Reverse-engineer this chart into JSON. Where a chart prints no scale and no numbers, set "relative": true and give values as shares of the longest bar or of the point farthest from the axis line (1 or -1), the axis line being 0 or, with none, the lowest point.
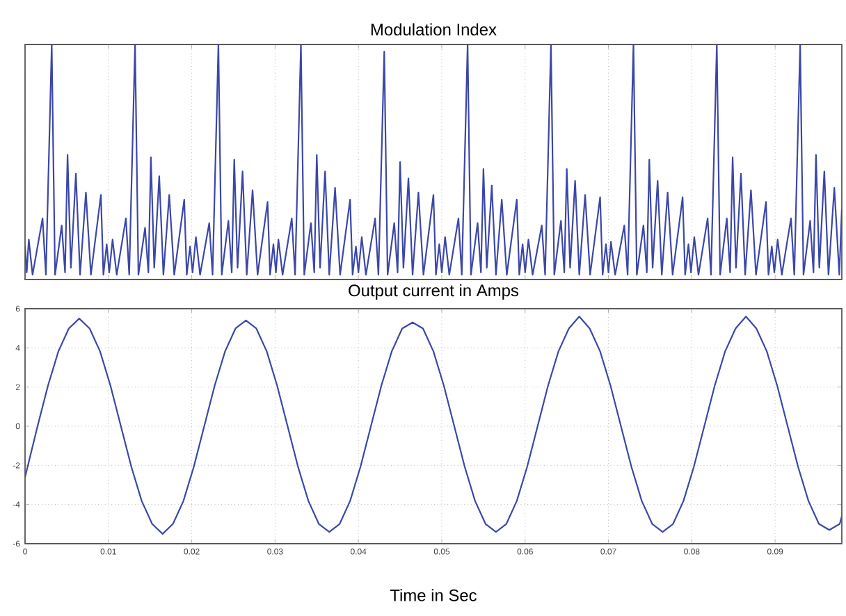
{
  "chart_data": [
    {
      "type": "line",
      "title": "Modulation Index",
      "relative": true,
      "color": "#3b47a8",
      "grid": "x",
      "tick_labels": false,
      "xlim": [
        0,
        0.098
      ],
      "xticks": [
        0,
        0.01,
        0.02,
        0.03,
        0.04,
        0.05,
        0.06,
        0.07,
        0.08,
        0.09
      ],
      "x": [
        0,
        0.0002,
        0.00045,
        0.0009,
        0.0021,
        0.0025,
        0.0032,
        0.0036,
        0.0044,
        0.0048,
        0.0051,
        0.0055,
        0.0061,
        0.0066,
        0.0073,
        0.0079,
        0.0091,
        0.0094,
        0.0098,
        0.0101,
        0.0105,
        0.011,
        0.0121,
        0.0125,
        0.0132,
        0.0136,
        0.0144,
        0.0148,
        0.0151,
        0.0155,
        0.0161,
        0.0166,
        0.0173,
        0.0179,
        0.0191,
        0.0194,
        0.0198,
        0.0201,
        0.0205,
        0.021,
        0.0221,
        0.0225,
        0.0232,
        0.0236,
        0.0244,
        0.0248,
        0.0251,
        0.0255,
        0.0261,
        0.0266,
        0.0273,
        0.0279,
        0.0291,
        0.0294,
        0.0298,
        0.0301,
        0.0304,
        0.0309,
        0.032,
        0.0324,
        0.0331,
        0.0335,
        0.0343,
        0.0347,
        0.035,
        0.0354,
        0.036,
        0.0365,
        0.0372,
        0.0378,
        0.039,
        0.0393,
        0.0397,
        0.04,
        0.0404,
        0.0409,
        0.042,
        0.0424,
        0.0431,
        0.0435,
        0.0443,
        0.0447,
        0.045,
        0.0454,
        0.046,
        0.0465,
        0.0472,
        0.0478,
        0.049,
        0.0493,
        0.0497,
        0.05,
        0.0504,
        0.0509,
        0.052,
        0.0524,
        0.0531,
        0.0535,
        0.0543,
        0.0547,
        0.055,
        0.0554,
        0.056,
        0.0565,
        0.0572,
        0.0578,
        0.059,
        0.0593,
        0.0597,
        0.06,
        0.0604,
        0.0609,
        0.062,
        0.0624,
        0.0631,
        0.0635,
        0.0643,
        0.0647,
        0.065,
        0.0654,
        0.066,
        0.0665,
        0.0672,
        0.0678,
        0.069,
        0.0693,
        0.0697,
        0.07,
        0.0703,
        0.0708,
        0.0719,
        0.0723,
        0.073,
        0.0734,
        0.0742,
        0.0746,
        0.0749,
        0.0753,
        0.0759,
        0.0764,
        0.0771,
        0.0777,
        0.0789,
        0.0792,
        0.0796,
        0.0799,
        0.0803,
        0.0808,
        0.0819,
        0.0823,
        0.083,
        0.0834,
        0.0842,
        0.0846,
        0.0849,
        0.0853,
        0.0859,
        0.0864,
        0.0871,
        0.0877,
        0.0889,
        0.0892,
        0.0896,
        0.0899,
        0.0903,
        0.0908,
        0.0919,
        0.0923,
        0.093,
        0.0934,
        0.0942,
        0.0946,
        0.0949,
        0.0953,
        0.0959,
        0.0964,
        0.0971,
        0.0977,
        0.098
      ],
      "values": [
        0.14,
        0.03,
        0.17,
        0.02,
        0.26,
        0.02,
        1,
        0.02,
        0.23,
        0.03,
        0.53,
        0.05,
        0.45,
        0.02,
        0.37,
        0.02,
        0.36,
        0.02,
        0.15,
        0.03,
        0.17,
        0.02,
        0.26,
        0.02,
        1,
        0.02,
        0.22,
        0.03,
        0.52,
        0.05,
        0.44,
        0.02,
        0.36,
        0.02,
        0.34,
        0.02,
        0.14,
        0.03,
        0.18,
        0.02,
        0.24,
        0.02,
        1,
        0.02,
        0.25,
        0.03,
        0.51,
        0.05,
        0.46,
        0.02,
        0.38,
        0.02,
        0.33,
        0.02,
        0.15,
        0.03,
        0.17,
        0.02,
        0.26,
        0.02,
        1,
        0.02,
        0.24,
        0.03,
        0.53,
        0.05,
        0.46,
        0.02,
        0.39,
        0.02,
        0.34,
        0.02,
        0.14,
        0.03,
        0.18,
        0.02,
        0.26,
        0.02,
        0.97,
        0.02,
        0.24,
        0.03,
        0.5,
        0.05,
        0.43,
        0.02,
        0.37,
        0.02,
        0.36,
        0.02,
        0.15,
        0.03,
        0.18,
        0.02,
        0.26,
        0.02,
        1,
        0.02,
        0.24,
        0.03,
        0.47,
        0.05,
        0.4,
        0.02,
        0.34,
        0.02,
        0.34,
        0.02,
        0.15,
        0.03,
        0.17,
        0.02,
        0.23,
        0.02,
        1,
        0.02,
        0.25,
        0.03,
        0.47,
        0.05,
        0.42,
        0.02,
        0.36,
        0.02,
        0.35,
        0.02,
        0.15,
        0.03,
        0.16,
        0.02,
        0.23,
        0.02,
        1,
        0.02,
        0.23,
        0.03,
        0.51,
        0.05,
        0.42,
        0.02,
        0.37,
        0.02,
        0.35,
        0.02,
        0.15,
        0.03,
        0.18,
        0.02,
        0.26,
        0.02,
        1,
        0.02,
        0.26,
        0.03,
        0.52,
        0.05,
        0.45,
        0.02,
        0.38,
        0.02,
        0.33,
        0.02,
        0.14,
        0.03,
        0.17,
        0.02,
        0.26,
        0.02,
        1,
        0.02,
        0.25,
        0.03,
        0.53,
        0.05,
        0.46,
        0.02,
        0.39,
        0.02,
        0.3
      ]
    },
    {
      "type": "line",
      "title": "Output current in Amps",
      "xlabel": "Time in Sec",
      "color": "#3b47a8",
      "grid": true,
      "xlim": [
        0,
        0.098
      ],
      "xticks": [
        0,
        0.01,
        0.02,
        0.03,
        0.04,
        0.05,
        0.06,
        0.07,
        0.08,
        0.09
      ],
      "ylim": [
        -6,
        6
      ],
      "yticks": [
        -6,
        -4,
        -2,
        0,
        2,
        4,
        6
      ],
      "x": [
        0,
        0.0015,
        0.00275,
        0.004,
        0.00525,
        0.0065,
        0.00775,
        0.009,
        0.01025,
        0.0115,
        0.01275,
        0.014,
        0.01525,
        0.0165,
        0.01775,
        0.019,
        0.02025,
        0.0215,
        0.02275,
        0.024,
        0.02525,
        0.0265,
        0.02775,
        0.029,
        0.03025,
        0.0315,
        0.03275,
        0.034,
        0.03525,
        0.0365,
        0.03775,
        0.039,
        0.04025,
        0.0415,
        0.04275,
        0.044,
        0.04525,
        0.0465,
        0.04775,
        0.049,
        0.05025,
        0.0515,
        0.05275,
        0.054,
        0.05525,
        0.0565,
        0.05775,
        0.059,
        0.06025,
        0.0615,
        0.06275,
        0.064,
        0.06525,
        0.0665,
        0.06775,
        0.069,
        0.07025,
        0.0715,
        0.07275,
        0.074,
        0.07525,
        0.0765,
        0.07775,
        0.079,
        0.08025,
        0.0815,
        0.08275,
        0.084,
        0.08525,
        0.0865,
        0.08775,
        0.089,
        0.09025,
        0.0915,
        0.09275,
        0.094,
        0.09525,
        0.0965,
        0.09775,
        0.098
      ],
      "values": [
        -2.6,
        0,
        2.07,
        3.82,
        4.99,
        5.5,
        4.99,
        3.82,
        2.07,
        0,
        -2.07,
        -3.82,
        -4.99,
        -5.5,
        -4.99,
        -3.82,
        -2.07,
        0,
        2.07,
        3.82,
        4.99,
        5.4,
        4.99,
        3.82,
        2.07,
        0,
        -2.07,
        -3.82,
        -4.99,
        -5.4,
        -4.99,
        -3.82,
        -2.07,
        0,
        2.07,
        3.82,
        4.99,
        5.3,
        4.99,
        3.82,
        2.07,
        0,
        -2.07,
        -3.82,
        -4.99,
        -5.4,
        -4.99,
        -3.82,
        -2.07,
        0,
        2.07,
        3.82,
        4.99,
        5.6,
        4.99,
        3.82,
        2.07,
        0,
        -2.07,
        -3.82,
        -4.99,
        -5.4,
        -4.99,
        -3.82,
        -2.07,
        0,
        2.07,
        3.82,
        4.99,
        5.6,
        4.99,
        3.82,
        2.07,
        0,
        -2.07,
        -3.82,
        -4.99,
        -5.3,
        -4.99,
        -4.6
      ]
    }
  ]
}
